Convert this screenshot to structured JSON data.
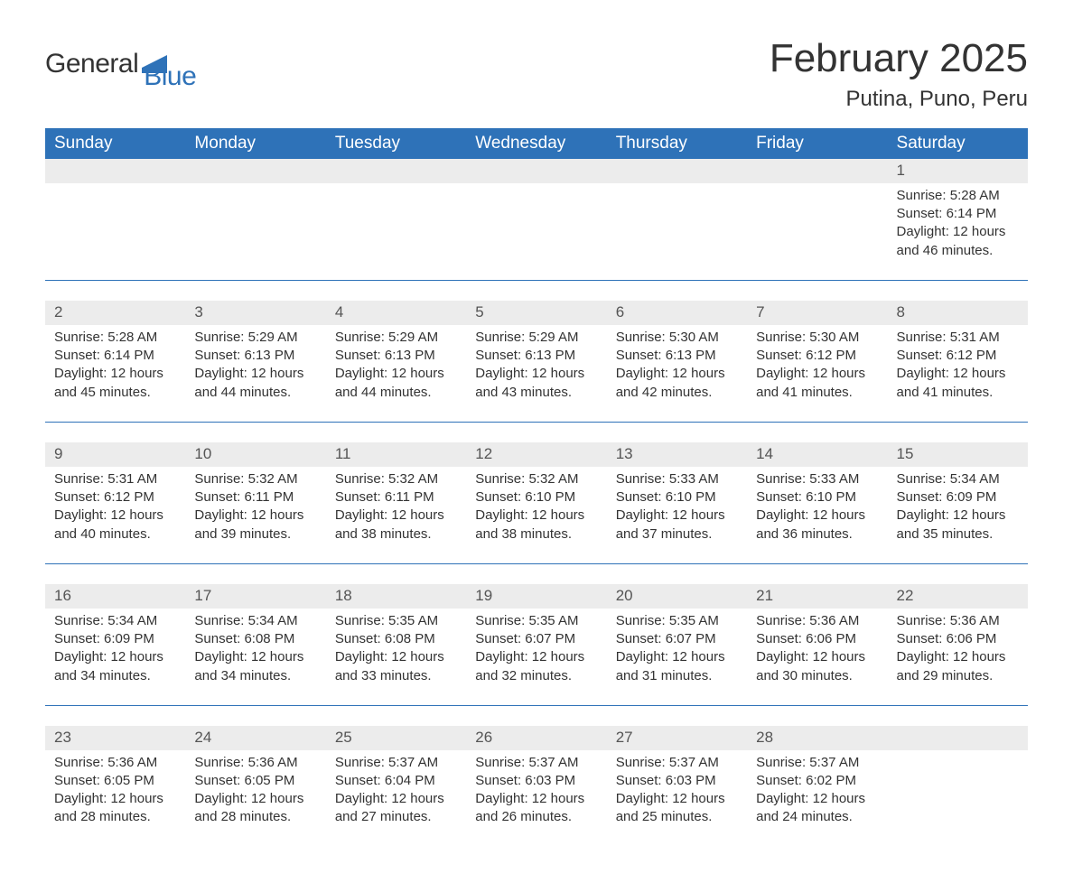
{
  "brand": {
    "word1": "General",
    "word2": "Blue"
  },
  "title": "February 2025",
  "location": "Putina, Puno, Peru",
  "colors": {
    "brand_blue": "#2e72b8",
    "band_gray": "#ececec",
    "text": "#333333",
    "background": "#ffffff"
  },
  "typography": {
    "title_fontsize_pt": 33,
    "location_fontsize_pt": 18,
    "header_fontsize_pt": 14,
    "body_fontsize_pt": 11
  },
  "layout": {
    "columns": 7,
    "rows": 5
  },
  "weekdays": [
    "Sunday",
    "Monday",
    "Tuesday",
    "Wednesday",
    "Thursday",
    "Friday",
    "Saturday"
  ],
  "weeks": [
    [
      null,
      null,
      null,
      null,
      null,
      null,
      {
        "n": "1",
        "sunrise": "Sunrise: 5:28 AM",
        "sunset": "Sunset: 6:14 PM",
        "day1": "Daylight: 12 hours",
        "day2": "and 46 minutes."
      }
    ],
    [
      {
        "n": "2",
        "sunrise": "Sunrise: 5:28 AM",
        "sunset": "Sunset: 6:14 PM",
        "day1": "Daylight: 12 hours",
        "day2": "and 45 minutes."
      },
      {
        "n": "3",
        "sunrise": "Sunrise: 5:29 AM",
        "sunset": "Sunset: 6:13 PM",
        "day1": "Daylight: 12 hours",
        "day2": "and 44 minutes."
      },
      {
        "n": "4",
        "sunrise": "Sunrise: 5:29 AM",
        "sunset": "Sunset: 6:13 PM",
        "day1": "Daylight: 12 hours",
        "day2": "and 44 minutes."
      },
      {
        "n": "5",
        "sunrise": "Sunrise: 5:29 AM",
        "sunset": "Sunset: 6:13 PM",
        "day1": "Daylight: 12 hours",
        "day2": "and 43 minutes."
      },
      {
        "n": "6",
        "sunrise": "Sunrise: 5:30 AM",
        "sunset": "Sunset: 6:13 PM",
        "day1": "Daylight: 12 hours",
        "day2": "and 42 minutes."
      },
      {
        "n": "7",
        "sunrise": "Sunrise: 5:30 AM",
        "sunset": "Sunset: 6:12 PM",
        "day1": "Daylight: 12 hours",
        "day2": "and 41 minutes."
      },
      {
        "n": "8",
        "sunrise": "Sunrise: 5:31 AM",
        "sunset": "Sunset: 6:12 PM",
        "day1": "Daylight: 12 hours",
        "day2": "and 41 minutes."
      }
    ],
    [
      {
        "n": "9",
        "sunrise": "Sunrise: 5:31 AM",
        "sunset": "Sunset: 6:12 PM",
        "day1": "Daylight: 12 hours",
        "day2": "and 40 minutes."
      },
      {
        "n": "10",
        "sunrise": "Sunrise: 5:32 AM",
        "sunset": "Sunset: 6:11 PM",
        "day1": "Daylight: 12 hours",
        "day2": "and 39 minutes."
      },
      {
        "n": "11",
        "sunrise": "Sunrise: 5:32 AM",
        "sunset": "Sunset: 6:11 PM",
        "day1": "Daylight: 12 hours",
        "day2": "and 38 minutes."
      },
      {
        "n": "12",
        "sunrise": "Sunrise: 5:32 AM",
        "sunset": "Sunset: 6:10 PM",
        "day1": "Daylight: 12 hours",
        "day2": "and 38 minutes."
      },
      {
        "n": "13",
        "sunrise": "Sunrise: 5:33 AM",
        "sunset": "Sunset: 6:10 PM",
        "day1": "Daylight: 12 hours",
        "day2": "and 37 minutes."
      },
      {
        "n": "14",
        "sunrise": "Sunrise: 5:33 AM",
        "sunset": "Sunset: 6:10 PM",
        "day1": "Daylight: 12 hours",
        "day2": "and 36 minutes."
      },
      {
        "n": "15",
        "sunrise": "Sunrise: 5:34 AM",
        "sunset": "Sunset: 6:09 PM",
        "day1": "Daylight: 12 hours",
        "day2": "and 35 minutes."
      }
    ],
    [
      {
        "n": "16",
        "sunrise": "Sunrise: 5:34 AM",
        "sunset": "Sunset: 6:09 PM",
        "day1": "Daylight: 12 hours",
        "day2": "and 34 minutes."
      },
      {
        "n": "17",
        "sunrise": "Sunrise: 5:34 AM",
        "sunset": "Sunset: 6:08 PM",
        "day1": "Daylight: 12 hours",
        "day2": "and 34 minutes."
      },
      {
        "n": "18",
        "sunrise": "Sunrise: 5:35 AM",
        "sunset": "Sunset: 6:08 PM",
        "day1": "Daylight: 12 hours",
        "day2": "and 33 minutes."
      },
      {
        "n": "19",
        "sunrise": "Sunrise: 5:35 AM",
        "sunset": "Sunset: 6:07 PM",
        "day1": "Daylight: 12 hours",
        "day2": "and 32 minutes."
      },
      {
        "n": "20",
        "sunrise": "Sunrise: 5:35 AM",
        "sunset": "Sunset: 6:07 PM",
        "day1": "Daylight: 12 hours",
        "day2": "and 31 minutes."
      },
      {
        "n": "21",
        "sunrise": "Sunrise: 5:36 AM",
        "sunset": "Sunset: 6:06 PM",
        "day1": "Daylight: 12 hours",
        "day2": "and 30 minutes."
      },
      {
        "n": "22",
        "sunrise": "Sunrise: 5:36 AM",
        "sunset": "Sunset: 6:06 PM",
        "day1": "Daylight: 12 hours",
        "day2": "and 29 minutes."
      }
    ],
    [
      {
        "n": "23",
        "sunrise": "Sunrise: 5:36 AM",
        "sunset": "Sunset: 6:05 PM",
        "day1": "Daylight: 12 hours",
        "day2": "and 28 minutes."
      },
      {
        "n": "24",
        "sunrise": "Sunrise: 5:36 AM",
        "sunset": "Sunset: 6:05 PM",
        "day1": "Daylight: 12 hours",
        "day2": "and 28 minutes."
      },
      {
        "n": "25",
        "sunrise": "Sunrise: 5:37 AM",
        "sunset": "Sunset: 6:04 PM",
        "day1": "Daylight: 12 hours",
        "day2": "and 27 minutes."
      },
      {
        "n": "26",
        "sunrise": "Sunrise: 5:37 AM",
        "sunset": "Sunset: 6:03 PM",
        "day1": "Daylight: 12 hours",
        "day2": "and 26 minutes."
      },
      {
        "n": "27",
        "sunrise": "Sunrise: 5:37 AM",
        "sunset": "Sunset: 6:03 PM",
        "day1": "Daylight: 12 hours",
        "day2": "and 25 minutes."
      },
      {
        "n": "28",
        "sunrise": "Sunrise: 5:37 AM",
        "sunset": "Sunset: 6:02 PM",
        "day1": "Daylight: 12 hours",
        "day2": "and 24 minutes."
      },
      null
    ]
  ]
}
